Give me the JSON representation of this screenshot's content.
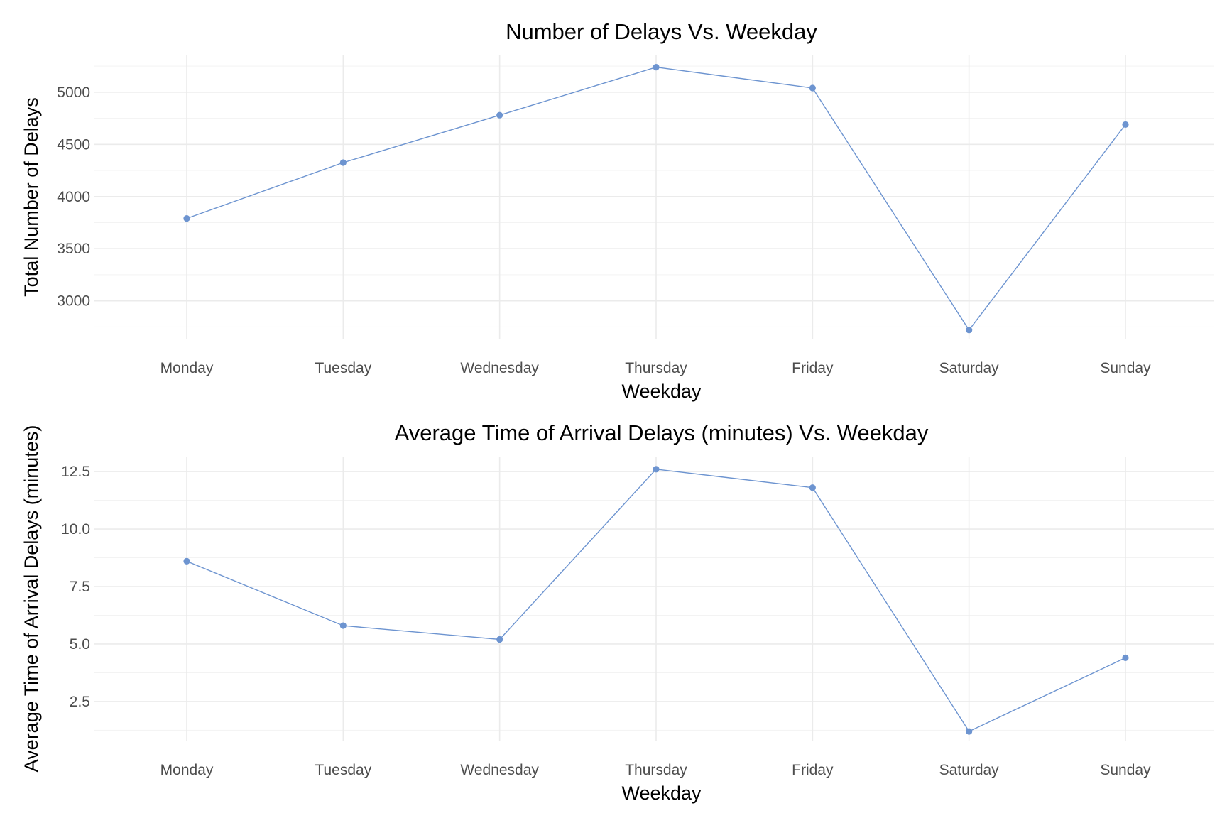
{
  "chart_data": [
    {
      "type": "line",
      "title": "Number of Delays Vs. Weekday",
      "xlabel": "Weekday",
      "ylabel": "Total Number of Delays",
      "categories": [
        "Monday",
        "Tuesday",
        "Wednesday",
        "Thursday",
        "Friday",
        "Saturday",
        "Sunday"
      ],
      "values": [
        3790,
        4325,
        4780,
        5240,
        5040,
        2720,
        4690
      ],
      "yticks": [
        3000,
        3500,
        4000,
        4500,
        5000
      ],
      "ylim": [
        2630,
        5360
      ],
      "grid": true,
      "legend": "none",
      "color": "#6d94d0"
    },
    {
      "type": "line",
      "title": "Average Time of Arrival Delays (minutes) Vs. Weekday",
      "xlabel": "Weekday",
      "ylabel": "Average Time of Arrival Delays (minutes)",
      "categories": [
        "Monday",
        "Tuesday",
        "Wednesday",
        "Thursday",
        "Friday",
        "Saturday",
        "Sunday"
      ],
      "values": [
        8.6,
        5.8,
        5.2,
        12.6,
        11.8,
        1.2,
        4.4
      ],
      "yticks": [
        2.5,
        5.0,
        7.5,
        10.0,
        12.5
      ],
      "tick_labels": [
        "2.5",
        "5.0",
        "7.5",
        "10.0",
        "12.5"
      ],
      "ylim": [
        0.8,
        13.15
      ],
      "grid": true,
      "legend": "none",
      "color": "#6d94d0"
    }
  ]
}
